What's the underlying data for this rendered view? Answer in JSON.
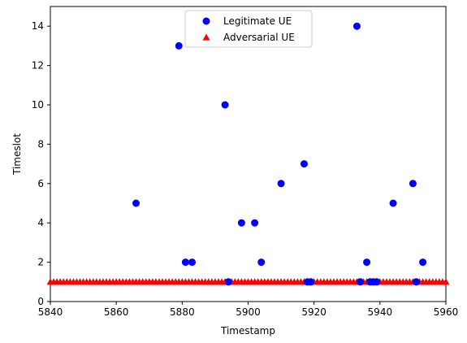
{
  "chart_data": {
    "type": "scatter",
    "title": "",
    "xlabel": "Timestamp",
    "ylabel": "Timeslot",
    "xlim": [
      5840,
      5960
    ],
    "ylim": [
      0,
      15
    ],
    "xticks": [
      5840,
      5860,
      5880,
      5900,
      5920,
      5940,
      5960
    ],
    "yticks": [
      0,
      2,
      4,
      6,
      8,
      10,
      12,
      14
    ],
    "grid": false,
    "legend_position": "top-center",
    "series": [
      {
        "name": "Legitimate UE",
        "marker": "circle",
        "color": "#0000ff",
        "points": [
          [
            5866,
            5
          ],
          [
            5879,
            13
          ],
          [
            5881,
            2
          ],
          [
            5883,
            2
          ],
          [
            5893,
            10
          ],
          [
            5894,
            1
          ],
          [
            5898,
            4
          ],
          [
            5902,
            4
          ],
          [
            5904,
            2
          ],
          [
            5910,
            6
          ],
          [
            5917,
            7
          ],
          [
            5918,
            1
          ],
          [
            5919,
            1
          ],
          [
            5933,
            14
          ],
          [
            5934,
            1
          ],
          [
            5936,
            2
          ],
          [
            5937,
            1
          ],
          [
            5938,
            1
          ],
          [
            5939,
            1
          ],
          [
            5944,
            5
          ],
          [
            5950,
            6
          ],
          [
            5951,
            1
          ],
          [
            5953,
            2
          ]
        ]
      },
      {
        "name": "Adversarial UE",
        "marker": "triangle",
        "color": "#ff0000",
        "points_note_free": true,
        "x": [
          5840,
          5841,
          5842,
          5843,
          5844,
          5845,
          5846,
          5847,
          5848,
          5849,
          5850,
          5851,
          5852,
          5853,
          5854,
          5855,
          5856,
          5857,
          5858,
          5859,
          5860,
          5861,
          5862,
          5863,
          5864,
          5865,
          5866,
          5867,
          5868,
          5869,
          5870,
          5871,
          5872,
          5873,
          5874,
          5875,
          5876,
          5877,
          5878,
          5879,
          5880,
          5881,
          5882,
          5883,
          5884,
          5885,
          5886,
          5887,
          5888,
          5889,
          5890,
          5891,
          5892,
          5893,
          5894,
          5895,
          5896,
          5897,
          5898,
          5899,
          5900,
          5901,
          5902,
          5903,
          5904,
          5905,
          5906,
          5907,
          5908,
          5909,
          5910,
          5911,
          5912,
          5913,
          5914,
          5915,
          5916,
          5917,
          5918,
          5919,
          5920,
          5921,
          5922,
          5923,
          5924,
          5925,
          5926,
          5927,
          5928,
          5929,
          5930,
          5931,
          5932,
          5933,
          5934,
          5935,
          5936,
          5937,
          5938,
          5939,
          5940,
          5941,
          5942,
          5943,
          5944,
          5945,
          5946,
          5947,
          5948,
          5949,
          5950,
          5951,
          5952,
          5953,
          5954,
          5955,
          5956,
          5957,
          5958,
          5959,
          5960
        ],
        "y_constant": 1
      }
    ]
  }
}
